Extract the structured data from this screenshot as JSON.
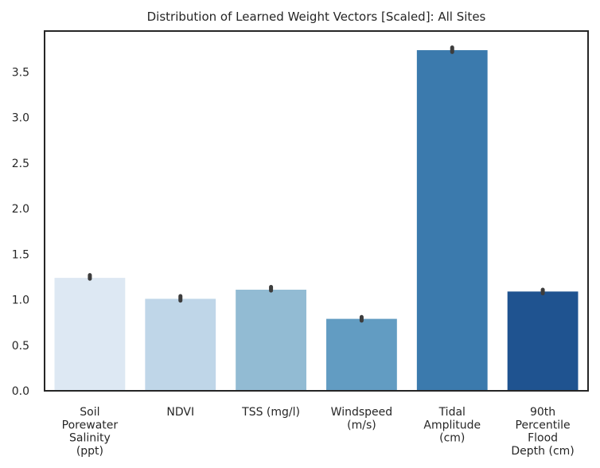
{
  "chart_data": {
    "type": "bar",
    "title": "Distribution of Learned Weight Vectors [Scaled]: All Sites",
    "xlabel": "",
    "ylabel": "",
    "categories": [
      "Soil\nPorewater\nSalinity\n(ppt)",
      "NDVI",
      "TSS (mg/l)",
      "Windspeed\n(m/s)",
      "Tidal\nAmplitude\n(cm)",
      "90th\nPercentile\nFlood\nDepth (cm)"
    ],
    "values": [
      1.24,
      1.01,
      1.11,
      0.79,
      3.74,
      1.09
    ],
    "error_low": [
      1.23,
      0.99,
      1.1,
      0.77,
      3.72,
      1.07
    ],
    "error_high": [
      1.27,
      1.04,
      1.14,
      0.81,
      3.77,
      1.11
    ],
    "colors": [
      "#dde8f3",
      "#bfd6e8",
      "#92bbd3",
      "#629cc2",
      "#3b7aad",
      "#1f5390"
    ],
    "ylim": [
      0,
      3.95
    ],
    "yticks": [
      "0.0",
      "0.5",
      "1.0",
      "1.5",
      "2.0",
      "2.5",
      "3.0",
      "3.5"
    ],
    "grid": false,
    "legend": "none"
  }
}
